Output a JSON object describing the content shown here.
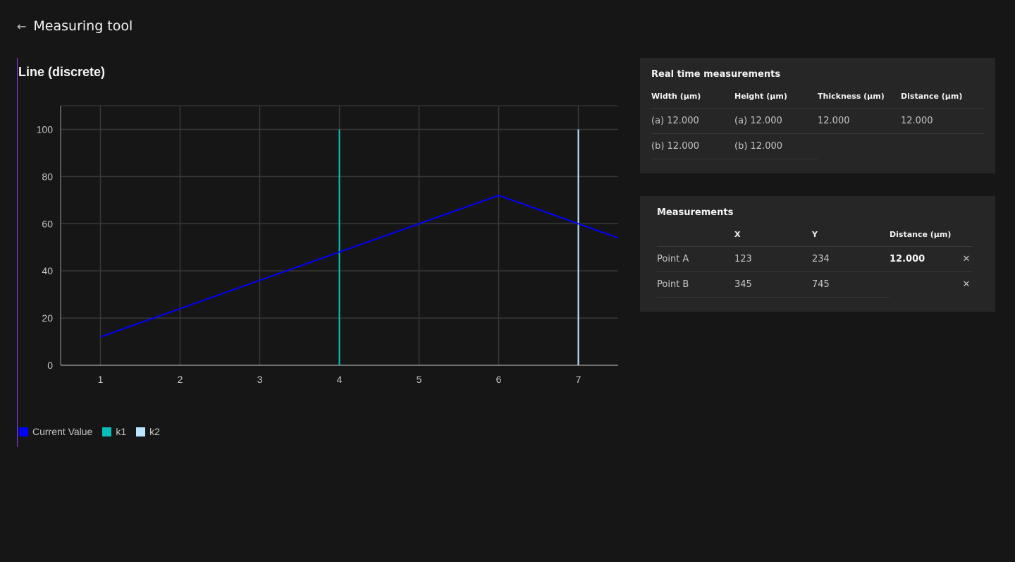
{
  "header": {
    "title": "Measuring tool",
    "back_icon": "arrow-left-icon"
  },
  "colors": {
    "accent": "#8a3ffc",
    "current": "#0000ff",
    "k1": "#08bdba",
    "k2": "#bae6ff"
  },
  "chart_data": {
    "type": "line",
    "title": "Line (discrete)",
    "xlabel": "",
    "ylabel": "",
    "x_ticks": [
      "1",
      "2",
      "3",
      "4",
      "5",
      "6",
      "7"
    ],
    "y_ticks": [
      "0",
      "20",
      "40",
      "60",
      "80",
      "100"
    ],
    "xlim": [
      0.5,
      7.5
    ],
    "ylim": [
      0,
      110
    ],
    "grid": true,
    "series": [
      {
        "name": "Current Value",
        "x": [
          1,
          2,
          3,
          4,
          5,
          6,
          7,
          8
        ],
        "values": [
          12,
          24,
          36,
          48,
          60,
          72,
          60,
          48
        ]
      }
    ],
    "markers": [
      {
        "name": "k1",
        "x": 4,
        "from": 0,
        "to": 100
      },
      {
        "name": "k2",
        "x": 7,
        "from": 0,
        "to": 100
      }
    ],
    "legend": [
      "Current Value",
      "k1",
      "k2"
    ],
    "legend_position": "bottom-left"
  },
  "realtime": {
    "title": "Real time measurements",
    "headers": [
      "Width (µm)",
      "Height (µm)",
      "Thickness (µm)",
      "Distance (µm)"
    ],
    "rows": [
      [
        "(a) 12.000",
        "(a) 12.000",
        "12.000",
        "12.000"
      ],
      [
        "(b) 12.000",
        "(b) 12.000",
        "",
        ""
      ]
    ]
  },
  "measurements": {
    "title": "Measurements",
    "headers": [
      "",
      "X",
      "Y",
      "Distance (µm)"
    ],
    "rows": [
      [
        "Point A",
        "123",
        "234",
        "12.000"
      ],
      [
        "Point B",
        "345",
        "745",
        ""
      ]
    ]
  }
}
